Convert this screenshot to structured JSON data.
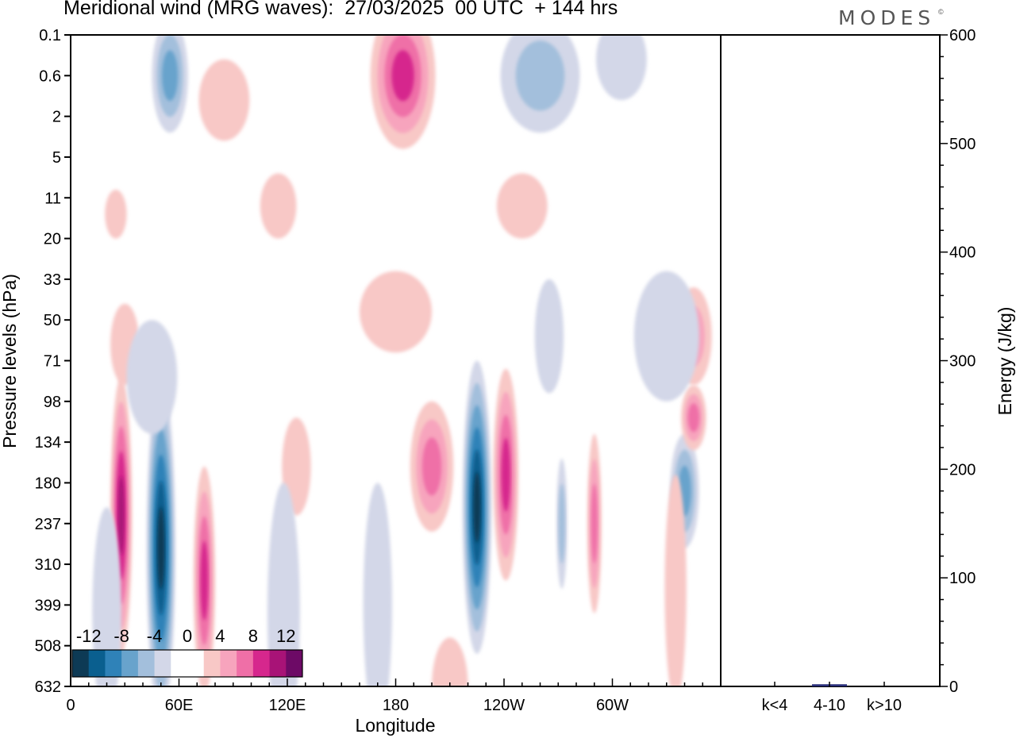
{
  "title": "Meridional wind (MRG waves):  27/03/2025  00 UTC  + 144 hrs",
  "logo": "MODES",
  "logo_mark": "©",
  "colors": {
    "neg": [
      "#0d3a55",
      "#0a5f8f",
      "#2f82b8",
      "#68a3cc",
      "#a3bfdc",
      "#d3d7e8"
    ],
    "pos": [
      "#f8c8c6",
      "#f7a4bd",
      "#ef6fa7",
      "#d6278d",
      "#a81377",
      "#6d0a66"
    ],
    "bar": "#2a2f7a"
  },
  "chart_data": [
    {
      "type": "heatmap",
      "title": "Meridional wind (MRG waves):  27/03/2025  00 UTC  + 144 hrs",
      "xlabel": "Longitude",
      "ylabel": "Pressure levels (hPa)",
      "x_ticks": [
        "0",
        "60E",
        "120E",
        "180",
        "120W",
        "60W"
      ],
      "x_tick_degrees": [
        0,
        60,
        120,
        180,
        240,
        300
      ],
      "x_range_degrees": [
        0,
        360
      ],
      "y_ticks": [
        "0.1",
        "0.6",
        "2",
        "5",
        "11",
        "20",
        "33",
        "50",
        "71",
        "98",
        "134",
        "180",
        "237",
        "310",
        "399",
        "508",
        "632"
      ],
      "y_scale": "levels (top 0.1, bottom 632)",
      "colorbar": {
        "labels": [
          "-12",
          "-8",
          "-4",
          "0",
          "4",
          "8",
          "12"
        ],
        "levels": [
          -14,
          -12,
          -10,
          -8,
          -6,
          -4,
          -2,
          0,
          2,
          4,
          6,
          8,
          10,
          12,
          14
        ],
        "placement": "bottom-left"
      },
      "features": [
        {
          "lon": 28,
          "level": 11.5,
          "value": 10,
          "type": "core"
        },
        {
          "lon": 50,
          "level": 12.5,
          "value": -14,
          "type": "core"
        },
        {
          "lon": 74,
          "level": 13.5,
          "value": 8,
          "type": "core"
        },
        {
          "lon": 198,
          "level": 10.5,
          "value": 7,
          "type": "core"
        },
        {
          "lon": 226,
          "level": 11.2,
          "value": -14,
          "type": "core"
        },
        {
          "lon": 241,
          "level": 10.5,
          "value": 9,
          "type": "core"
        },
        {
          "lon": 185,
          "level": 1.0,
          "value": 10,
          "type": "core"
        },
        {
          "lon": 56,
          "level": 1.1,
          "value": -8,
          "type": "core"
        }
      ]
    },
    {
      "type": "bar",
      "categories": [
        "k<4",
        "4-10",
        "k>10"
      ],
      "values": [
        0,
        2,
        0
      ],
      "ylabel": "Energy (J/kg)",
      "ylim": [
        0,
        600
      ],
      "y_ticks": [
        "0",
        "100",
        "200",
        "300",
        "400",
        "500",
        "600"
      ]
    }
  ]
}
